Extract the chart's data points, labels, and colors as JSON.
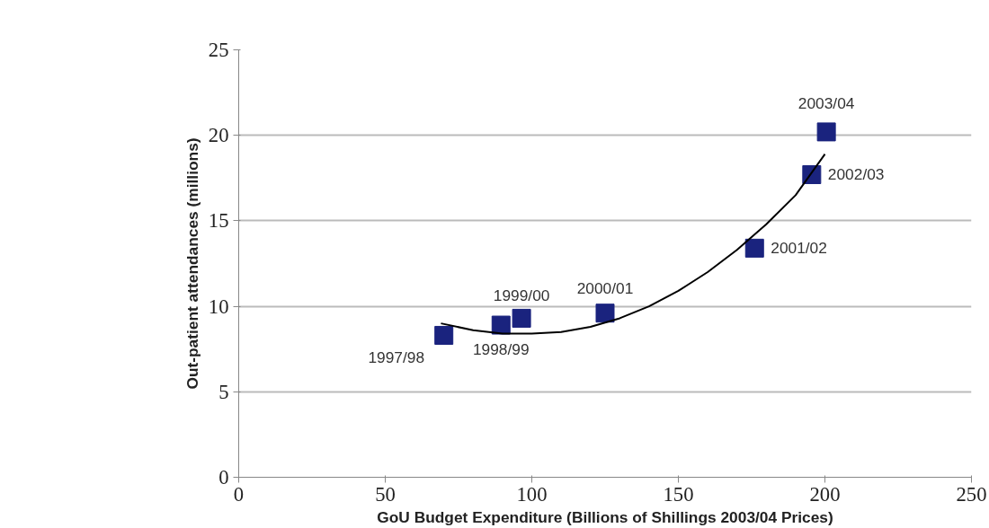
{
  "chart_data": {
    "type": "scatter",
    "xlabel": "GoU Budget Expenditure (Billions of Shillings 2003/04 Prices)",
    "ylabel": "Out-patient attendances (millions)",
    "xlim": [
      0,
      250
    ],
    "xticks": [
      0,
      50,
      100,
      150,
      200,
      250
    ],
    "ylim": [
      0,
      25
    ],
    "yticks": [
      0,
      5,
      10,
      15,
      20,
      25
    ],
    "grid": "y",
    "series": [
      {
        "marker": "square",
        "color": "#1a237e",
        "x": [
          70,
          89.5,
          96.5,
          125,
          176,
          195.5,
          200.5
        ],
        "values": [
          8.3,
          8.9,
          9.3,
          9.6,
          13.4,
          17.7,
          20.2
        ]
      },
      {
        "type": "line",
        "color": "#000000",
        "line_style": "solid",
        "x": [
          69,
          80,
          90,
          100,
          110,
          120,
          130,
          140,
          150,
          160,
          170,
          180,
          190,
          200
        ],
        "values": [
          9.0,
          8.6,
          8.4,
          8.4,
          8.5,
          8.8,
          9.3,
          10.0,
          10.9,
          12.0,
          13.3,
          14.8,
          16.5,
          18.9
        ]
      }
    ],
    "annotations": [
      {
        "text": "1997/98",
        "x": 70,
        "y": 8.3
      },
      {
        "text": "1998/99",
        "x": 89.5,
        "y": 8.9
      },
      {
        "text": "1999/00",
        "x": 96.5,
        "y": 9.3
      },
      {
        "text": "2000/01",
        "x": 125,
        "y": 9.6
      },
      {
        "text": "2001/02",
        "x": 176,
        "y": 13.4
      },
      {
        "text": "2002/03",
        "x": 195.5,
        "y": 17.7
      },
      {
        "text": "2003/04",
        "x": 200.5,
        "y": 20.2
      }
    ]
  }
}
